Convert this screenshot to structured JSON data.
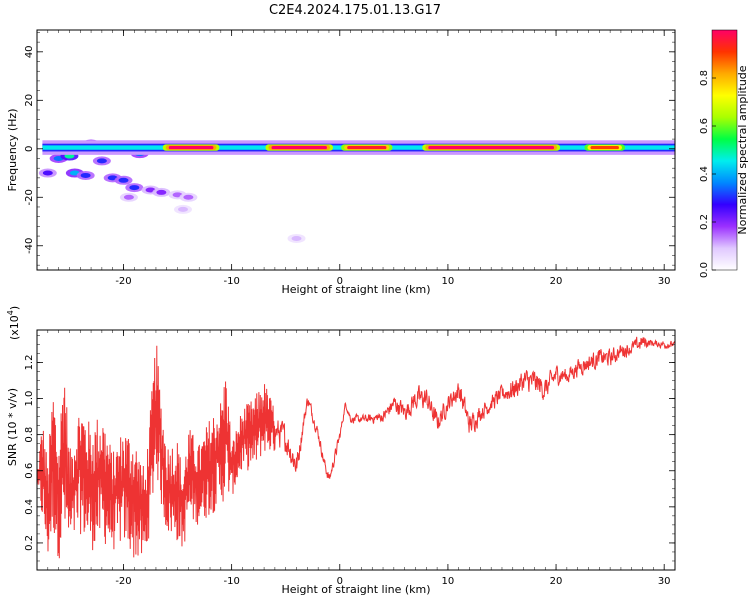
{
  "title": "C2E4.2024.175.01.13.G17",
  "colors": {
    "axis": "#000000",
    "snr_line": "#ee3333",
    "colormap": [
      "#ffffff",
      "#e0c8ff",
      "#9b30ff",
      "#3300ff",
      "#0088ff",
      "#00eeee",
      "#00ff44",
      "#aaff00",
      "#ffff00",
      "#ffaa00",
      "#ff3300",
      "#ff0066"
    ]
  },
  "chart_data": [
    {
      "type": "heatmap",
      "xlabel": "Height of straight line (km)",
      "ylabel": "Frequency (Hz)",
      "xlim": [
        -28,
        31
      ],
      "ylim": [
        -50,
        49
      ],
      "x_ticks": [
        -20,
        -10,
        0,
        10,
        20,
        30
      ],
      "y_ticks": [
        -40,
        -20,
        0,
        20,
        40
      ],
      "colorbar": {
        "label": "Normalized spectral amplitude",
        "range": [
          0,
          1
        ],
        "ticks": [
          "0.0",
          "0.2",
          "0.4",
          "0.6",
          "0.8"
        ]
      },
      "ridge": {
        "x_range": [
          -27.5,
          31
        ],
        "frequency_hz": 0.5,
        "peak_segments": [
          {
            "x_start": -16,
            "x_end": -11.5,
            "amplitude": 1.0
          },
          {
            "x_start": -6.5,
            "x_end": -1.0,
            "amplitude": 1.0
          },
          {
            "x_start": 0.5,
            "x_end": 4.5,
            "amplitude": 0.95
          },
          {
            "x_start": 8.0,
            "x_end": 20.0,
            "amplitude": 1.0
          },
          {
            "x_start": 23.0,
            "x_end": 26.0,
            "amplitude": 0.9
          }
        ],
        "background_amplitude": 0.45
      },
      "blobs": [
        {
          "x": -27.0,
          "y": -10,
          "amp": 0.25
        },
        {
          "x": -26.0,
          "y": -4,
          "amp": 0.35
        },
        {
          "x": -25.0,
          "y": -3,
          "amp": 0.5
        },
        {
          "x": -24.5,
          "y": -10,
          "amp": 0.4
        },
        {
          "x": -23.5,
          "y": -11,
          "amp": 0.3
        },
        {
          "x": -23.0,
          "y": 2,
          "amp": 0.35
        },
        {
          "x": -22.0,
          "y": -5,
          "amp": 0.3
        },
        {
          "x": -21.0,
          "y": -12,
          "amp": 0.3
        },
        {
          "x": -20.0,
          "y": -13,
          "amp": 0.3
        },
        {
          "x": -19.0,
          "y": -16,
          "amp": 0.3
        },
        {
          "x": -18.5,
          "y": -2,
          "amp": 0.35
        },
        {
          "x": -17.5,
          "y": -17,
          "amp": 0.2
        },
        {
          "x": -16.5,
          "y": -18,
          "amp": 0.2
        },
        {
          "x": -15.0,
          "y": -19,
          "amp": 0.15
        },
        {
          "x": -14.0,
          "y": -20,
          "amp": 0.15
        },
        {
          "x": -19.5,
          "y": -20,
          "amp": 0.15
        },
        {
          "x": -14.5,
          "y": -25,
          "amp": 0.1
        },
        {
          "x": -4.0,
          "y": -37,
          "amp": 0.1
        }
      ]
    },
    {
      "type": "line",
      "xlabel": "Height of straight line (km)",
      "ylabel": "SNR (10 * v/v)",
      "y_multiplier": "(x10",
      "y_multiplier_exp": "4",
      "y_multiplier_close": ")",
      "xlim": [
        -28,
        31
      ],
      "ylim": [
        0.05,
        1.38
      ],
      "x_ticks": [
        -20,
        -10,
        0,
        10,
        20,
        30
      ],
      "y_ticks": [
        0.2,
        0.4,
        0.6,
        0.8,
        1.0,
        1.2
      ],
      "series": [
        {
          "envelope": [
            [
              -28,
              0.55
            ],
            [
              -27.5,
              0.3,
              0.9
            ],
            [
              -27,
              0.1,
              0.65
            ],
            [
              -26.5,
              0.25,
              1.1
            ],
            [
              -26,
              0.1,
              0.75
            ],
            [
              -25.5,
              0.2,
              1.28
            ],
            [
              -25,
              0.15,
              0.7
            ],
            [
              -24,
              0.25,
              1.0
            ],
            [
              -23,
              0.15,
              0.85
            ],
            [
              -22,
              0.2,
              0.95
            ],
            [
              -21,
              0.15,
              0.7
            ],
            [
              -20,
              0.2,
              0.85
            ],
            [
              -19,
              0.1,
              0.8
            ],
            [
              -18,
              0.08,
              0.6
            ],
            [
              -17.5,
              0.3,
              0.95
            ],
            [
              -17,
              0.6,
              1.35
            ],
            [
              -16.5,
              0.4,
              1.0
            ],
            [
              -16,
              0.25,
              0.75
            ],
            [
              -15,
              0.2,
              0.78
            ],
            [
              -14.5,
              0.15,
              0.6
            ],
            [
              -14,
              0.3,
              0.85
            ],
            [
              -13,
              0.3,
              0.75
            ],
            [
              -12,
              0.35,
              0.9
            ],
            [
              -11,
              0.4,
              1.0
            ],
            [
              -10.5,
              0.45,
              1.18
            ],
            [
              -10,
              0.45,
              0.75
            ],
            [
              -9,
              0.6,
              0.95
            ],
            [
              -8,
              0.6,
              1.0
            ],
            [
              -7,
              0.7,
              1.1
            ],
            [
              -6,
              0.7,
              0.95
            ],
            [
              -5,
              0.65,
              0.9
            ],
            [
              -4,
              0.5,
              0.75
            ],
            [
              -3.5,
              0.75,
              0.9
            ],
            [
              -3,
              0.95,
              1.05
            ],
            [
              -2,
              0.75,
              0.85
            ],
            [
              -1.5,
              0.6,
              0.7
            ],
            [
              -1,
              0.5,
              0.6
            ],
            [
              0,
              0.75,
              0.85
            ],
            [
              0.5,
              0.95,
              1.0
            ],
            [
              1,
              0.85,
              0.92
            ],
            [
              2,
              0.85,
              0.92
            ],
            [
              3,
              0.85,
              0.93
            ],
            [
              4,
              0.85,
              0.95
            ],
            [
              5,
              0.9,
              1.05
            ],
            [
              6,
              0.85,
              1.0
            ],
            [
              7,
              0.9,
              1.1
            ],
            [
              8,
              0.9,
              1.1
            ],
            [
              9,
              0.78,
              0.95
            ],
            [
              10,
              0.9,
              1.05
            ],
            [
              11,
              0.95,
              1.15
            ],
            [
              12,
              0.75,
              0.95
            ],
            [
              13,
              0.85,
              1.0
            ],
            [
              14,
              0.9,
              1.05
            ],
            [
              15,
              0.95,
              1.1
            ],
            [
              16,
              0.95,
              1.15
            ],
            [
              17,
              1.0,
              1.2
            ],
            [
              18,
              0.98,
              1.2
            ],
            [
              19,
              0.95,
              1.15
            ],
            [
              20,
              1.05,
              1.22
            ],
            [
              21,
              1.05,
              1.2
            ],
            [
              22,
              1.1,
              1.25
            ],
            [
              23,
              1.12,
              1.28
            ],
            [
              24,
              1.15,
              1.3
            ],
            [
              25,
              1.15,
              1.3
            ],
            [
              26,
              1.2,
              1.33
            ],
            [
              27,
              1.22,
              1.34
            ],
            [
              28,
              1.25,
              1.38
            ],
            [
              29,
              1.28,
              1.33
            ],
            [
              30,
              1.26,
              1.34
            ],
            [
              31,
              1.28,
              1.32
            ]
          ]
        }
      ]
    }
  ]
}
